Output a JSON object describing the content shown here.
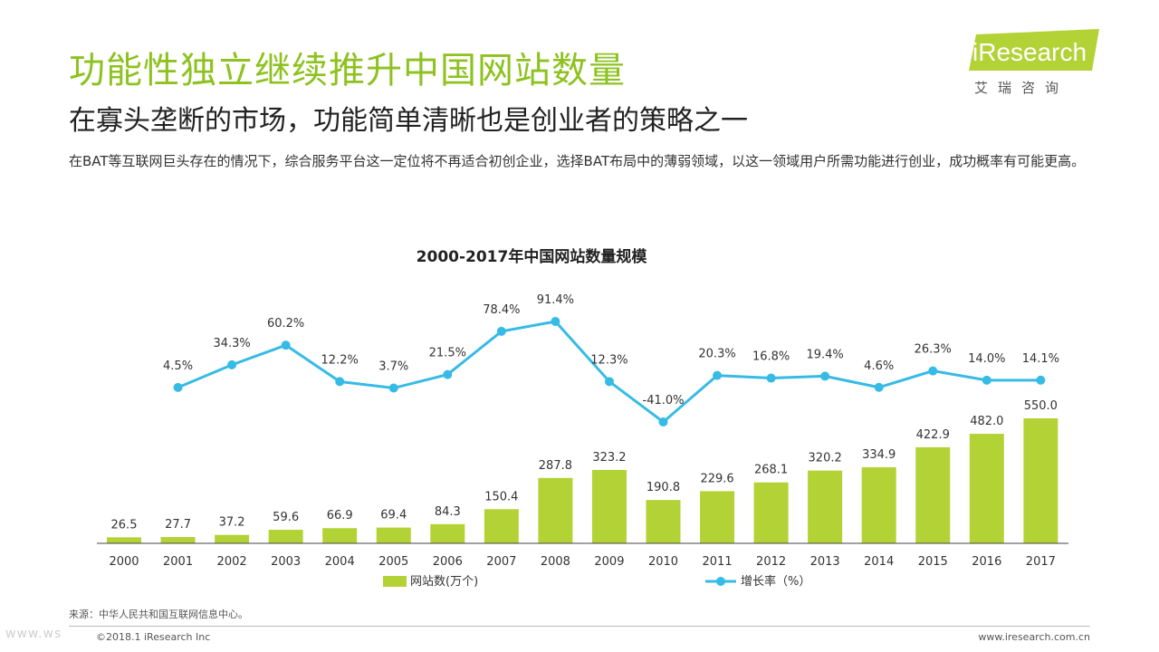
{
  "colors": {
    "title": "#8DC21F",
    "bar": "#B3D236",
    "line": "#36BBE6",
    "text": "#333333",
    "axis": "#444444",
    "logo_bg": "#B3D236"
  },
  "header": {
    "title": "功能性独立继续推升中国网站数量",
    "subtitle": "在寡头垄断的市场，功能简单清晰也是创业者的策略之一",
    "intro": "在BAT等互联网巨头存在的情况下，综合服务平台这一定位将不再适合初创企业，选择BAT布局中的薄弱领域，以这一领域用户所需功能进行创业，成功概率有可能更高。"
  },
  "logo": {
    "brand": "iResearch",
    "cn": "艾瑞咨询"
  },
  "chart_data": {
    "type": "bar",
    "title": "2000-2017年中国网站数量规模",
    "categories": [
      "2000",
      "2001",
      "2002",
      "2003",
      "2004",
      "2005",
      "2006",
      "2007",
      "2008",
      "2009",
      "2010",
      "2011",
      "2012",
      "2013",
      "2014",
      "2015",
      "2016",
      "2017"
    ],
    "series": [
      {
        "name": "网站数(万个)",
        "type": "bar",
        "values": [
          26.5,
          27.7,
          37.2,
          59.6,
          66.9,
          69.4,
          84.3,
          150.4,
          287.8,
          323.2,
          190.8,
          229.6,
          268.1,
          320.2,
          334.9,
          422.9,
          482.0,
          550.0
        ],
        "labels": [
          "26.5",
          "27.7",
          "37.2",
          "59.6",
          "66.9",
          "69.4",
          "84.3",
          "150.4",
          "287.8",
          "323.2",
          "190.8",
          "229.6",
          "268.1",
          "320.2",
          "334.9",
          "422.9",
          "482.0",
          "550.0"
        ]
      },
      {
        "name": "增长率（%）",
        "type": "line",
        "values": [
          null,
          4.5,
          34.3,
          60.2,
          12.2,
          3.7,
          21.5,
          78.4,
          91.4,
          12.3,
          -41.0,
          20.3,
          16.8,
          19.4,
          4.6,
          26.3,
          14.0,
          14.1
        ],
        "labels": [
          "",
          "4.5%",
          "34.3%",
          "60.2%",
          "12.2%",
          "3.7%",
          "21.5%",
          "78.4%",
          "91.4%",
          "12.3%",
          "-41.0%",
          "20.3%",
          "16.8%",
          "19.4%",
          "4.6%",
          "26.3%",
          "14.0%",
          "14.1%"
        ]
      }
    ],
    "ylim_bar": [
      0,
      550
    ],
    "ylim_line": [
      -41,
      91.4
    ],
    "legend": "bottom-center"
  },
  "footer": {
    "source": "来源：中华人民共和国互联网信息中心。",
    "copyright": "©2018.1 iResearch Inc",
    "website": "www.iresearch.com.cn",
    "watermark": "www.ws"
  }
}
